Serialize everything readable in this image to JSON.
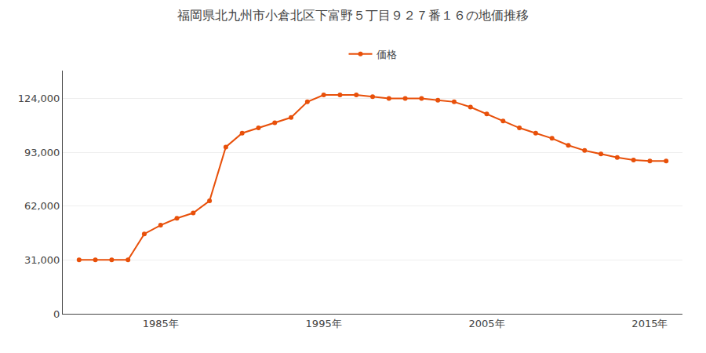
{
  "chart_data": {
    "type": "line",
    "title": "福岡県北九州市小倉北区下富野５丁目９２７番１６の地価推移",
    "x": [
      1980,
      1981,
      1982,
      1983,
      1984,
      1985,
      1986,
      1987,
      1988,
      1989,
      1990,
      1991,
      1992,
      1993,
      1994,
      1995,
      1996,
      1997,
      1998,
      1999,
      2000,
      2001,
      2002,
      2003,
      2004,
      2005,
      2006,
      2007,
      2008,
      2009,
      2010,
      2011,
      2012,
      2013,
      2014,
      2015,
      2016
    ],
    "series": [
      {
        "name": "価格",
        "color": "#e8500a",
        "marker": "circle",
        "line_style": "solid",
        "values": [
          31000,
          31000,
          31000,
          31000,
          46000,
          51000,
          55000,
          58000,
          65000,
          96000,
          104000,
          107000,
          110000,
          113000,
          122000,
          126000,
          126000,
          126000,
          125000,
          124000,
          124000,
          124000,
          123000,
          122000,
          119000,
          115000,
          111000,
          107000,
          104000,
          101000,
          97000,
          94000,
          92000,
          90000,
          88500,
          88000,
          88000
        ]
      }
    ],
    "xlim": [
      1979,
      2017
    ],
    "xticks": [
      {
        "value": 1985,
        "label": "1985年"
      },
      {
        "value": 1995,
        "label": "1995年"
      },
      {
        "value": 2005,
        "label": "2005年"
      },
      {
        "value": 2015,
        "label": "2015年"
      }
    ],
    "ylim": [
      0,
      140000
    ],
    "yticks": [
      0,
      {
        "value": 31000,
        "label": "31,000"
      },
      {
        "value": 62000,
        "label": "62,000"
      },
      {
        "value": 93000,
        "label": "93,000"
      },
      {
        "value": 124000,
        "label": "124,000"
      }
    ],
    "grid": "y",
    "legend": "top"
  }
}
